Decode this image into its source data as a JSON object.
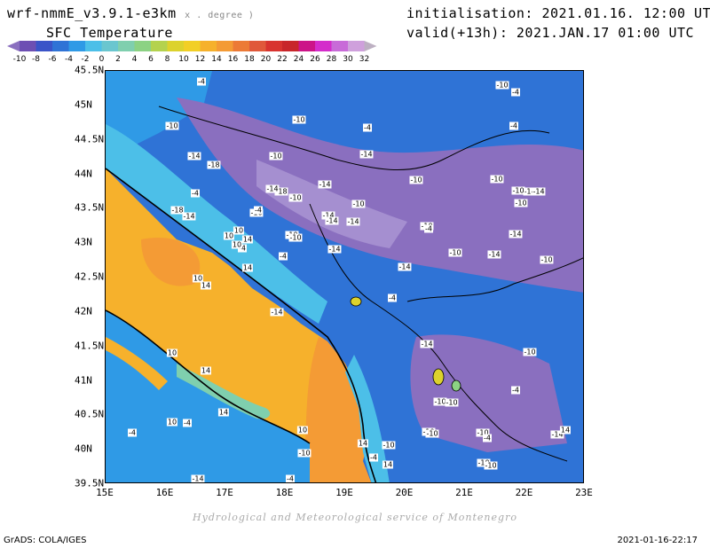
{
  "header": {
    "model": "wrf-nmmE_v3.9.1-e3km",
    "units": "x . degree )",
    "field": "SFC Temperature",
    "init": "initialisation: 2021.01.16. 12:00 UTC",
    "valid": "valid(+13h): 2021.JAN.17 01:00 UTC"
  },
  "colorbar": {
    "labels": [
      "-10",
      "-8",
      "-6",
      "-4",
      "-2",
      "0",
      "2",
      "4",
      "6",
      "8",
      "10",
      "12",
      "14",
      "16",
      "18",
      "20",
      "22",
      "24",
      "26",
      "28",
      "30",
      "32"
    ],
    "colors": [
      "#8a6fbf",
      "#6d4fb3",
      "#3a54c8",
      "#2f73d6",
      "#2f9ae6",
      "#4cbfe8",
      "#6ac6cf",
      "#7fcfae",
      "#8cd283",
      "#b4d24e",
      "#dcd22d",
      "#f2cf25",
      "#f6b12c",
      "#f49b35",
      "#ec7a36",
      "#e0583a",
      "#d8332f",
      "#c8262a",
      "#cc1488",
      "#d42ccb",
      "#c86bd8",
      "#cfa0dc",
      "#bdb0c2"
    ]
  },
  "axes": {
    "lon": [
      "15E",
      "16E",
      "17E",
      "18E",
      "19E",
      "20E",
      "21E",
      "22E",
      "23E"
    ],
    "lat": [
      "45.5N",
      "45N",
      "44.5N",
      "44N",
      "43.5N",
      "43N",
      "42.5N",
      "42N",
      "41.5N",
      "41N",
      "40.5N",
      "40N",
      "39.5N"
    ]
  },
  "map_labels": [
    "-4",
    "-10",
    "-14",
    "-18",
    "-10",
    "-4",
    "-10",
    "-14",
    "-18",
    "-14",
    "-10",
    "-14",
    "-16",
    "-4",
    "-14",
    "-18",
    "-4",
    "-10",
    "-14",
    "-10",
    "-14",
    "-14",
    "-10",
    "-14",
    "-4",
    "-14",
    "-10",
    "-10",
    "-10",
    "-14",
    "-14",
    "-10",
    "-4",
    "-10",
    "-14",
    "-10",
    "-4",
    "-10",
    "-14",
    "-10",
    "-4",
    "10",
    "14",
    "-4",
    "10",
    "10",
    "14",
    "10",
    "14",
    "-14",
    "10",
    "14",
    "10",
    "-4",
    "14",
    "-4",
    "-14",
    "-10",
    "-10",
    "-10",
    "-4",
    "-10",
    "-14",
    "-10",
    "-4",
    "-10",
    "-10",
    "-4",
    "-14",
    "-10",
    "10",
    "14",
    "14",
    "-4",
    "-10",
    "-10",
    "14",
    "-4"
  ],
  "footer": {
    "credit": "Hydrological and Meteorological service of Montenegro",
    "software": "GrADS: COLA/IGES",
    "timestamp": "2021-01-16-22:17"
  }
}
